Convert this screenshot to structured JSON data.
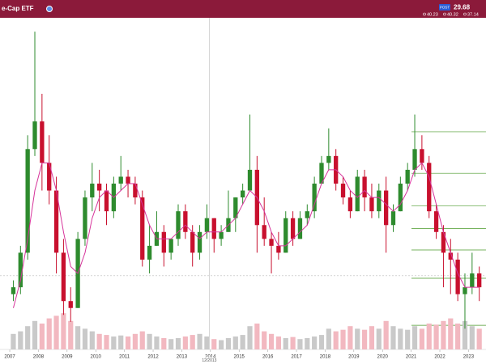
{
  "chart_data": {
    "type": "candlestick",
    "title": "e-Cap ETF",
    "badge": "POST",
    "last": 29.68,
    "quote": [
      40.23,
      40.32,
      37.14
    ],
    "crosshair": {
      "value": 2013.96,
      "label": "12/2013"
    },
    "xlim": [
      2006.66,
      2023.61
    ],
    "ylim": [
      19,
      67
    ],
    "volume_lim": [
      0,
      100
    ],
    "xticks": [
      2007,
      2008,
      2009,
      2010,
      2011,
      2012,
      2013,
      2014,
      2015,
      2016,
      2017,
      2018,
      2019,
      2020,
      2021,
      2022,
      2023
    ],
    "up_color": "#2e8b2e",
    "down_color": "#c8102e",
    "ma_color": "#d6339a",
    "level_color": "#4a9a2a",
    "levels": [
      50.5,
      44.5,
      39.8,
      36.5,
      33.4,
      29.3,
      22.5
    ],
    "x": [
      2007.125,
      2007.375,
      2007.625,
      2007.875,
      2008.125,
      2008.375,
      2008.625,
      2008.875,
      2009.125,
      2009.375,
      2009.625,
      2009.875,
      2010.125,
      2010.375,
      2010.625,
      2010.875,
      2011.125,
      2011.375,
      2011.625,
      2011.875,
      2012.125,
      2012.375,
      2012.625,
      2012.875,
      2013.125,
      2013.375,
      2013.625,
      2013.875,
      2014.125,
      2014.375,
      2014.625,
      2014.875,
      2015.125,
      2015.375,
      2015.625,
      2015.875,
      2016.125,
      2016.375,
      2016.625,
      2016.875,
      2017.125,
      2017.375,
      2017.625,
      2017.875,
      2018.125,
      2018.375,
      2018.625,
      2018.875,
      2019.125,
      2019.375,
      2019.625,
      2019.875,
      2020.125,
      2020.375,
      2020.625,
      2020.875,
      2021.125,
      2021.375,
      2021.625,
      2021.875,
      2022.125,
      2022.375,
      2022.625,
      2022.875,
      2023.125,
      2023.375
    ],
    "open": [
      27,
      28,
      33,
      48,
      52,
      46,
      42,
      33,
      26,
      25,
      35,
      41,
      43,
      42,
      39,
      43,
      44,
      43,
      41,
      32,
      34,
      36,
      33,
      35,
      39,
      36,
      33,
      36,
      38,
      35,
      36,
      38,
      41,
      42,
      45,
      37,
      35,
      34,
      33,
      38,
      35,
      38,
      39,
      43,
      46,
      47,
      43,
      41,
      39,
      44,
      41,
      39,
      42,
      37,
      39,
      43,
      45,
      48,
      46,
      39,
      36,
      33,
      32,
      27,
      28,
      30
    ],
    "high": [
      29,
      34,
      50,
      65,
      56,
      50,
      44,
      35,
      28,
      36,
      42,
      46,
      45,
      43,
      44,
      47,
      45,
      44,
      42,
      37,
      39,
      37,
      35,
      40,
      40,
      37,
      37,
      40,
      38,
      37,
      42,
      41,
      43,
      53,
      47,
      41,
      36,
      36,
      39,
      39,
      39,
      40,
      44,
      47,
      51,
      48,
      44,
      42,
      45,
      45,
      43,
      43,
      44,
      40,
      44,
      46,
      53,
      50,
      47,
      40,
      37,
      35,
      33,
      30,
      33,
      31
    ],
    "low": [
      26,
      27,
      32,
      47,
      42,
      40,
      30,
      24,
      23,
      25,
      34,
      39,
      39,
      37,
      38,
      42,
      41,
      40,
      31,
      30,
      34,
      31,
      32,
      34,
      35,
      31,
      32,
      35,
      33,
      34,
      36,
      36,
      40,
      42,
      33,
      34,
      30,
      32,
      33,
      34,
      35,
      37,
      38,
      43,
      45,
      42,
      40,
      38,
      39,
      39,
      38,
      38,
      33,
      36,
      39,
      42,
      44,
      45,
      38,
      35,
      28,
      27,
      26,
      22,
      27,
      26
    ],
    "close": [
      28,
      33,
      48,
      52,
      46,
      42,
      33,
      26,
      25,
      35,
      41,
      43,
      42,
      39,
      43,
      44,
      43,
      41,
      32,
      34,
      36,
      33,
      35,
      39,
      36,
      33,
      36,
      38,
      35,
      36,
      38,
      41,
      42,
      45,
      37,
      35,
      34,
      33,
      38,
      35,
      38,
      39,
      43,
      46,
      47,
      43,
      41,
      39,
      44,
      41,
      39,
      42,
      37,
      39,
      43,
      45,
      48,
      46,
      39,
      36,
      33,
      32,
      27,
      28,
      30,
      28
    ],
    "volume": [
      30,
      35,
      45,
      55,
      50,
      60,
      65,
      70,
      55,
      45,
      40,
      35,
      30,
      28,
      25,
      27,
      25,
      30,
      35,
      30,
      25,
      22,
      20,
      22,
      25,
      28,
      30,
      25,
      20,
      18,
      22,
      25,
      28,
      45,
      50,
      35,
      30,
      25,
      22,
      24,
      20,
      22,
      25,
      28,
      40,
      35,
      38,
      45,
      40,
      38,
      45,
      40,
      55,
      45,
      40,
      38,
      45,
      40,
      50,
      48,
      55,
      60,
      50,
      55,
      45,
      40
    ],
    "ma": [
      25,
      29,
      35,
      42,
      46,
      46,
      42,
      36,
      31,
      30,
      33,
      38,
      41,
      42,
      41,
      42,
      43,
      43,
      40,
      37,
      35,
      35,
      35,
      36,
      37,
      36,
      35,
      36,
      36,
      36,
      37,
      38,
      40,
      42,
      41,
      39,
      36,
      34,
      34,
      35,
      36,
      37,
      40,
      43,
      45,
      45,
      44,
      42,
      41,
      42,
      41,
      41,
      40,
      39,
      40,
      42,
      45,
      46,
      44,
      40,
      36,
      33,
      30,
      28,
      28,
      28
    ]
  }
}
